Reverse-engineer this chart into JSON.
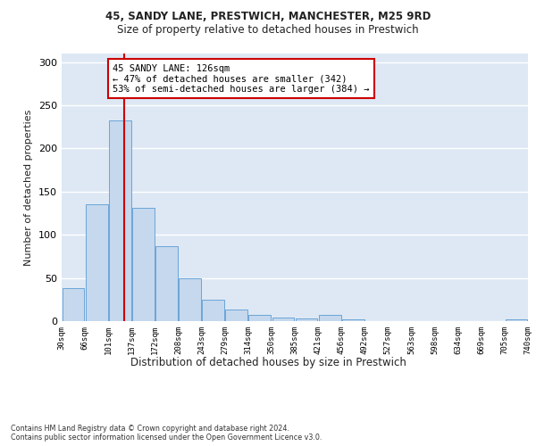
{
  "title1": "45, SANDY LANE, PRESTWICH, MANCHESTER, M25 9RD",
  "title2": "Size of property relative to detached houses in Prestwich",
  "xlabel": "Distribution of detached houses by size in Prestwich",
  "ylabel": "Number of detached properties",
  "footnote": "Contains HM Land Registry data © Crown copyright and database right 2024.\nContains public sector information licensed under the Open Government Licence v3.0.",
  "bin_labels": [
    "30sqm",
    "66sqm",
    "101sqm",
    "137sqm",
    "172sqm",
    "208sqm",
    "243sqm",
    "279sqm",
    "314sqm",
    "350sqm",
    "385sqm",
    "421sqm",
    "456sqm",
    "492sqm",
    "527sqm",
    "563sqm",
    "598sqm",
    "634sqm",
    "669sqm",
    "705sqm",
    "740sqm"
  ],
  "bar_values": [
    38,
    135,
    232,
    131,
    87,
    50,
    25,
    13,
    7,
    4,
    3,
    7,
    2,
    0,
    0,
    0,
    0,
    0,
    0,
    2
  ],
  "bar_color": "#c5d8ed",
  "bar_edge_color": "#5b9bd5",
  "vline_x_idx": 2.8,
  "vline_color": "#cc0000",
  "annotation_text": "45 SANDY LANE: 126sqm\n← 47% of detached houses are smaller (342)\n53% of semi-detached houses are larger (384) →",
  "annotation_box_color": "#ffffff",
  "annotation_box_edge": "#cc0000",
  "ylim": [
    0,
    310
  ],
  "yticks": [
    0,
    50,
    100,
    150,
    200,
    250,
    300
  ],
  "background_color": "#dde8f4",
  "grid_color": "#ffffff",
  "n_bins": 20
}
